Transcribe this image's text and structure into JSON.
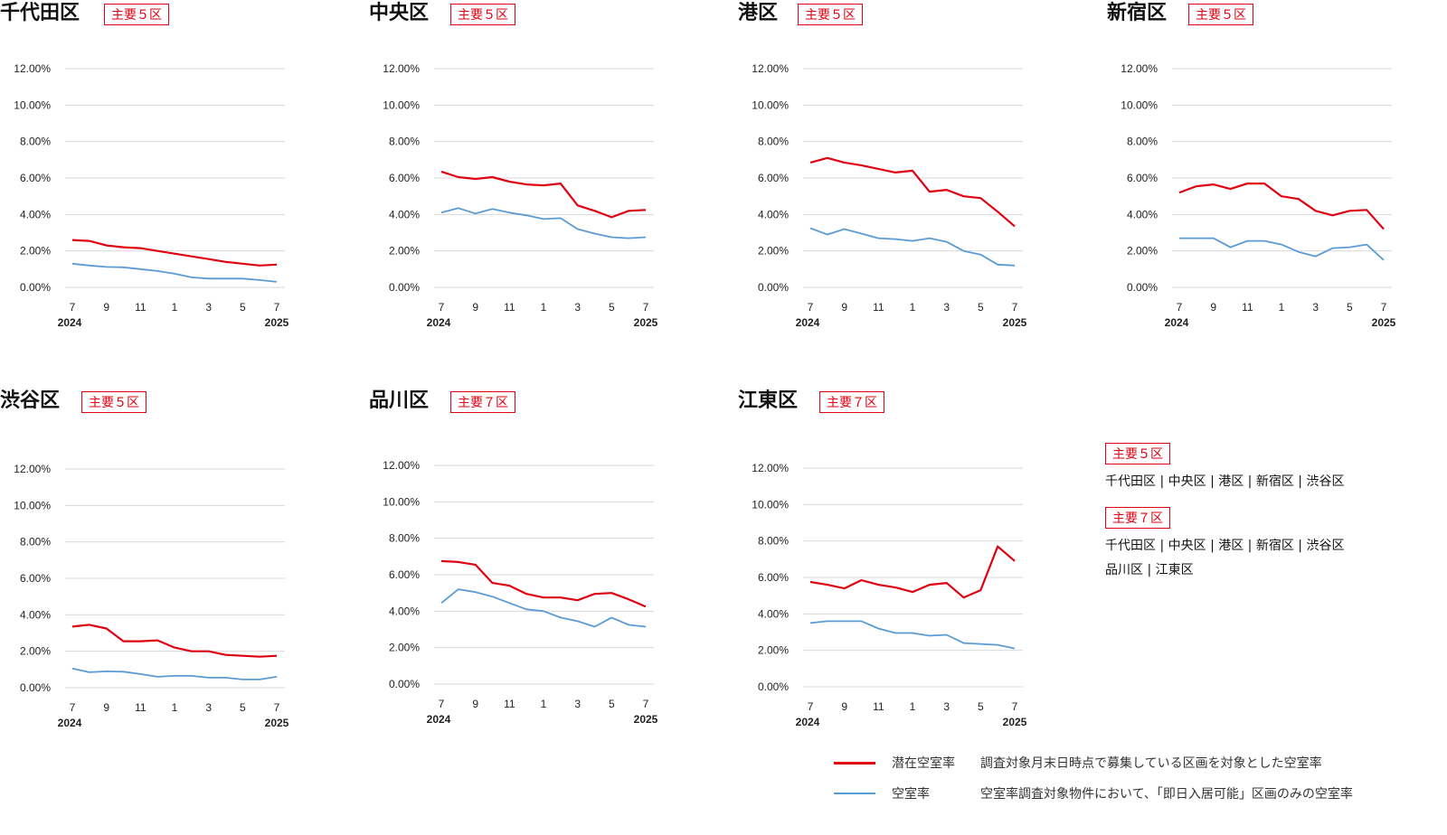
{
  "colors": {
    "potential": "#e00012",
    "vacancy": "#5b9bd5",
    "tag": "#e00012"
  },
  "chart_data": [
    {
      "type": "line",
      "title": "千代田区",
      "tag": "主要５区",
      "yticks": [
        "0.00%",
        "2.00%",
        "4.00%",
        "6.00%",
        "8.00%",
        "10.00%",
        "12.00%"
      ],
      "ylim": [
        0,
        12
      ],
      "xticks": [
        "7",
        "9",
        "11",
        "1",
        "3",
        "5",
        "7"
      ],
      "xyears": [
        "2024",
        "2025"
      ],
      "series": [
        {
          "key": "potential",
          "values": [
            2.6,
            2.55,
            2.3,
            2.2,
            2.15,
            2.0,
            1.85,
            1.7,
            1.55,
            1.4,
            1.3,
            1.2,
            1.25
          ]
        },
        {
          "key": "vacancy",
          "values": [
            1.3,
            1.2,
            1.12,
            1.1,
            1.0,
            0.9,
            0.75,
            0.55,
            0.48,
            0.48,
            0.48,
            0.4,
            0.3
          ]
        }
      ]
    },
    {
      "type": "line",
      "title": "中央区",
      "tag": "主要５区",
      "yticks": [
        "0.00%",
        "2.00%",
        "4.00%",
        "6.00%",
        "8.00%",
        "10.00%",
        "12.00%"
      ],
      "ylim": [
        0,
        12
      ],
      "xticks": [
        "7",
        "9",
        "11",
        "1",
        "3",
        "5",
        "7"
      ],
      "xyears": [
        "2024",
        "2025"
      ],
      "series": [
        {
          "key": "potential",
          "values": [
            6.35,
            6.05,
            5.95,
            6.05,
            5.8,
            5.65,
            5.6,
            5.7,
            4.5,
            4.2,
            3.85,
            4.2,
            4.25
          ]
        },
        {
          "key": "vacancy",
          "values": [
            4.1,
            4.35,
            4.05,
            4.3,
            4.1,
            3.95,
            3.75,
            3.8,
            3.2,
            2.95,
            2.75,
            2.7,
            2.75
          ]
        }
      ]
    },
    {
      "type": "line",
      "title": "港区",
      "tag": "主要５区",
      "yticks": [
        "0.00%",
        "2.00%",
        "4.00%",
        "6.00%",
        "8.00%",
        "10.00%",
        "12.00%"
      ],
      "ylim": [
        0,
        12
      ],
      "xticks": [
        "7",
        "9",
        "11",
        "1",
        "3",
        "5",
        "7"
      ],
      "xyears": [
        "2024",
        "2025"
      ],
      "series": [
        {
          "key": "potential",
          "values": [
            6.85,
            7.1,
            6.85,
            6.7,
            6.5,
            6.3,
            6.4,
            5.25,
            5.35,
            5.0,
            4.9,
            4.15,
            3.35
          ]
        },
        {
          "key": "vacancy",
          "values": [
            3.25,
            2.9,
            3.2,
            2.95,
            2.7,
            2.65,
            2.55,
            2.7,
            2.5,
            2.0,
            1.8,
            1.25,
            1.2
          ]
        }
      ]
    },
    {
      "type": "line",
      "title": "新宿区",
      "tag": "主要５区",
      "yticks": [
        "0.00%",
        "2.00%",
        "4.00%",
        "6.00%",
        "8.00%",
        "10.00%",
        "12.00%"
      ],
      "ylim": [
        0,
        12
      ],
      "xticks": [
        "7",
        "9",
        "11",
        "1",
        "3",
        "5",
        "7"
      ],
      "xyears": [
        "2024",
        "2025"
      ],
      "series": [
        {
          "key": "potential",
          "values": [
            5.2,
            5.55,
            5.65,
            5.4,
            5.7,
            5.7,
            5.0,
            4.85,
            4.2,
            3.95,
            4.2,
            4.25,
            3.2
          ]
        },
        {
          "key": "vacancy",
          "values": [
            2.7,
            2.7,
            2.7,
            2.2,
            2.55,
            2.55,
            2.35,
            1.95,
            1.7,
            2.15,
            2.2,
            2.35,
            1.5
          ]
        }
      ]
    },
    {
      "type": "line",
      "title": "渋谷区",
      "tag": "主要５区",
      "yticks": [
        "0.00%",
        "2.00%",
        "4.00%",
        "6.00%",
        "8.00%",
        "10.00%",
        "12.00%"
      ],
      "ylim": [
        0,
        12
      ],
      "xticks": [
        "7",
        "9",
        "11",
        "1",
        "3",
        "5",
        "7"
      ],
      "xyears": [
        "2024",
        "2025"
      ],
      "series": [
        {
          "key": "potential",
          "values": [
            3.35,
            3.45,
            3.25,
            2.55,
            2.55,
            2.6,
            2.2,
            2.0,
            2.0,
            1.8,
            1.75,
            1.7,
            1.75
          ]
        },
        {
          "key": "vacancy",
          "values": [
            1.05,
            0.85,
            0.9,
            0.88,
            0.75,
            0.6,
            0.65,
            0.65,
            0.55,
            0.55,
            0.45,
            0.45,
            0.6
          ]
        }
      ]
    },
    {
      "type": "line",
      "title": "品川区",
      "tag": "主要７区",
      "yticks": [
        "0.00%",
        "2.00%",
        "4.00%",
        "6.00%",
        "8.00%",
        "10.00%",
        "12.00%"
      ],
      "ylim": [
        0,
        12
      ],
      "xticks": [
        "7",
        "9",
        "11",
        "1",
        "3",
        "5",
        "7"
      ],
      "xyears": [
        "2024",
        "2025"
      ],
      "series": [
        {
          "key": "potential",
          "values": [
            6.75,
            6.7,
            6.55,
            5.55,
            5.4,
            4.95,
            4.75,
            4.75,
            4.6,
            4.95,
            5.0,
            4.65,
            4.25
          ]
        },
        {
          "key": "vacancy",
          "values": [
            4.45,
            5.2,
            5.05,
            4.8,
            4.45,
            4.1,
            4.0,
            3.65,
            3.45,
            3.15,
            3.65,
            3.25,
            3.15
          ]
        }
      ]
    },
    {
      "type": "line",
      "title": "江東区",
      "tag": "主要７区",
      "yticks": [
        "0.00%",
        "2.00%",
        "4.00%",
        "6.00%",
        "8.00%",
        "10.00%",
        "12.00%"
      ],
      "ylim": [
        0,
        12
      ],
      "xticks": [
        "7",
        "9",
        "11",
        "1",
        "3",
        "5",
        "7"
      ],
      "xyears": [
        "2024",
        "2025"
      ],
      "series": [
        {
          "key": "potential",
          "values": [
            5.75,
            5.6,
            5.4,
            5.85,
            5.6,
            5.45,
            5.2,
            5.6,
            5.7,
            4.9,
            5.3,
            7.7,
            6.9
          ]
        },
        {
          "key": "vacancy",
          "values": [
            3.5,
            3.6,
            3.6,
            3.6,
            3.2,
            2.95,
            2.95,
            2.8,
            2.85,
            2.4,
            2.35,
            2.3,
            2.1
          ]
        }
      ]
    }
  ],
  "notes": [
    {
      "tag": "主要５区",
      "lines": [
        "千代田区 | 中央区 | 港区 | 新宿区 | 渋谷区"
      ]
    },
    {
      "tag": "主要７区",
      "lines": [
        "千代田区 | 中央区 | 港区 | 新宿区 | 渋谷区",
        "品川区 | 江東区"
      ]
    }
  ],
  "legend": [
    {
      "key": "potential",
      "name": "潜在空室率",
      "desc": "調査対象月末日時点で募集している区画を対象とした空室率"
    },
    {
      "key": "vacancy",
      "name": "空室率",
      "desc": "空室率調査対象物件において、「即日入居可能」区画のみの空室率"
    }
  ]
}
